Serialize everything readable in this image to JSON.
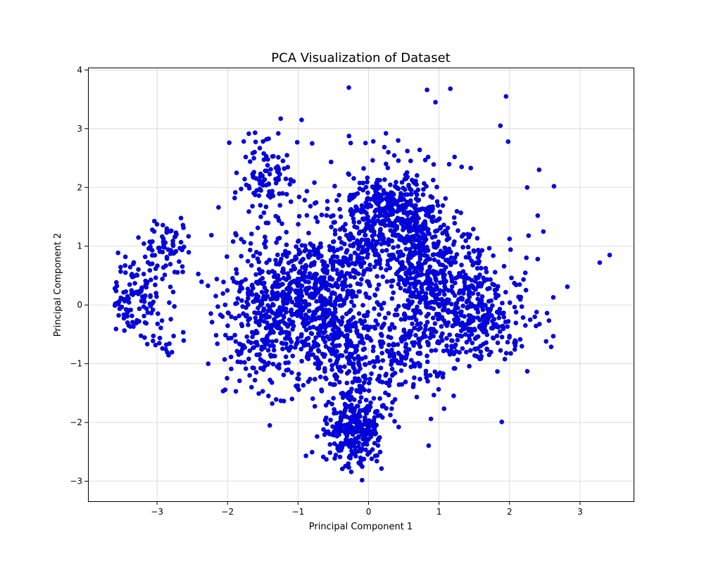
{
  "chart_data": {
    "type": "scatter",
    "title": "PCA Visualization of Dataset",
    "xlabel": "Principal Component 1",
    "ylabel": "Principal Component 2",
    "xlim": [
      -3.98,
      3.76
    ],
    "ylim": [
      -3.34,
      4.04
    ],
    "xticks": [
      -3,
      -2,
      -1,
      0,
      1,
      2,
      3
    ],
    "yticks": [
      -3,
      -2,
      -1,
      0,
      1,
      2,
      3,
      4
    ],
    "xtick_labels": [
      "−3",
      "−2",
      "−1",
      "0",
      "1",
      "2",
      "3"
    ],
    "ytick_labels": [
      "−3",
      "−2",
      "−1",
      "0",
      "1",
      "2",
      "3",
      "4"
    ],
    "grid": true,
    "legend": "none",
    "marker_color": "#0000ff",
    "marker_edge_color": "#00008b",
    "clusters": [
      {
        "cx": -3.3,
        "cy": 0.2,
        "sx": 0.2,
        "sy": 0.32,
        "n": 110
      },
      {
        "cx": -2.85,
        "cy": 0.95,
        "sx": 0.2,
        "sy": 0.28,
        "n": 70
      },
      {
        "cx": -2.9,
        "cy": -0.65,
        "sx": 0.12,
        "sy": 0.15,
        "n": 20
      },
      {
        "cx": -1.45,
        "cy": 2.2,
        "sx": 0.2,
        "sy": 0.35,
        "n": 100
      },
      {
        "cx": -1.0,
        "cy": 0.2,
        "sx": 0.48,
        "sy": 0.55,
        "n": 460
      },
      {
        "cx": -1.5,
        "cy": -0.4,
        "sx": 0.35,
        "sy": 0.55,
        "n": 220
      },
      {
        "cx": -0.6,
        "cy": -0.5,
        "sx": 0.35,
        "sy": 0.55,
        "n": 240
      },
      {
        "cx": -0.35,
        "cy": 0.95,
        "sx": 0.45,
        "sy": 0.5,
        "n": 170
      },
      {
        "cx": -0.2,
        "cy": -2.1,
        "sx": 0.2,
        "sy": 0.35,
        "n": 300
      },
      {
        "cx": 0.05,
        "cy": 1.5,
        "sx": 0.2,
        "sy": 0.5,
        "n": 180
      },
      {
        "cx": 0.5,
        "cy": 1.6,
        "sx": 0.22,
        "sy": 0.35,
        "n": 200
      },
      {
        "cx": 0.7,
        "cy": 0.65,
        "sx": 0.22,
        "sy": 0.6,
        "n": 320
      },
      {
        "cx": 0.3,
        "cy": -0.85,
        "sx": 0.5,
        "sy": 0.5,
        "n": 260
      },
      {
        "cx": 1.5,
        "cy": -0.1,
        "sx": 0.38,
        "sy": 0.45,
        "n": 380
      },
      {
        "cx": 1.2,
        "cy": 0.8,
        "sx": 0.3,
        "sy": 0.4,
        "n": 90
      }
    ],
    "extra_points": [
      {
        "x": -0.28,
        "y": 3.7
      },
      {
        "x": 0.83,
        "y": 3.66
      },
      {
        "x": 1.16,
        "y": 3.68
      },
      {
        "x": 1.95,
        "y": 3.55
      },
      {
        "x": 0.95,
        "y": 3.45
      },
      {
        "x": 1.87,
        "y": 3.05
      },
      {
        "x": 1.98,
        "y": 2.78
      },
      {
        "x": -0.95,
        "y": 3.15
      },
      {
        "x": -1.28,
        "y": 2.92
      },
      {
        "x": 2.42,
        "y": 2.3
      },
      {
        "x": 2.63,
        "y": 2.02
      },
      {
        "x": 2.25,
        "y": 2.0
      },
      {
        "x": 2.4,
        "y": 1.52
      },
      {
        "x": 2.48,
        "y": 1.25
      },
      {
        "x": 2.27,
        "y": 1.18
      },
      {
        "x": 3.42,
        "y": 0.85
      },
      {
        "x": 3.28,
        "y": 0.72
      },
      {
        "x": 2.82,
        "y": 0.31
      },
      {
        "x": 2.62,
        "y": 0.13
      },
      {
        "x": 2.62,
        "y": -0.53
      },
      {
        "x": 2.4,
        "y": 0.78
      },
      {
        "x": -1.9,
        "y": 1.82
      },
      {
        "x": 1.22,
        "y": 2.52
      },
      {
        "x": 1.32,
        "y": 2.35
      },
      {
        "x": 1.45,
        "y": 2.33
      },
      {
        "x": 0.28,
        "y": 2.6
      },
      {
        "x": 0.42,
        "y": 2.8
      },
      {
        "x": 0.55,
        "y": 2.62
      },
      {
        "x": -0.8,
        "y": 2.75
      }
    ]
  }
}
